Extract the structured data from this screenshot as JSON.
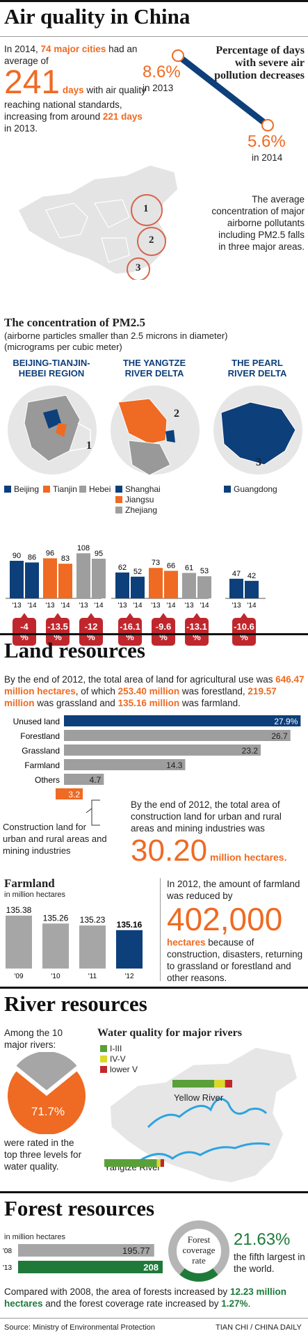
{
  "air": {
    "title": "Air quality in China",
    "intro": {
      "p1": "In 2014, ",
      "cities": "74 major cities",
      "p2": " had an average of",
      "days_big": "241",
      "days_word": " days",
      "p3": " with air quality reaching national standards, increasing from around ",
      "days_2013": "221 days",
      "p4": " in 2013."
    },
    "severe": {
      "title": "Percentage of days with severe air pollution decreases",
      "v2013": "8.6%",
      "y2013": "in 2013",
      "v2014": "5.6%",
      "y2014": "in 2014"
    },
    "map_note": "The average concentration of major airborne pollutants including PM2.5 falls in three major areas.",
    "map_labels": [
      "1",
      "2",
      "3"
    ],
    "pm": {
      "title": "The concentration of PM2.5",
      "sub1": "(airborne particles smaller than 2.5 microns in diameter)",
      "sub2": "(micrograms per cubic meter)"
    },
    "regions": [
      {
        "title1": "BEIJING-TIANJIN-",
        "title2": "HEBEI REGION",
        "num": "1"
      },
      {
        "title1": "THE YANGTZE",
        "title2": "RIVER DELTA",
        "num": "2"
      },
      {
        "title1": "THE PEARL",
        "title2": "RIVER DELTA",
        "num": "3"
      }
    ],
    "legend": {
      "beijing": "Beijing",
      "tianjin": "Tianjin",
      "hebei": "Hebei",
      "shanghai": "Shanghai",
      "jiangsu": "Jiangsu",
      "zhejiang": "Zhejiang",
      "guangdong": "Guangdong"
    },
    "changes": [
      "-4 %",
      "-13.5 %",
      "-12 %",
      "-16.1 %",
      "-9.6 %",
      "-13.1 %",
      "-10.6 %"
    ],
    "colors": {
      "navy": "#0d3f7a",
      "orange": "#ef6a22",
      "gray": "#9e9e9e",
      "red": "#c0272d",
      "green": "#1f7a3a"
    }
  },
  "land": {
    "title": "Land resources",
    "intro": {
      "p1": "By the end of 2012, the total area of land for agricultural use was ",
      "a": "646.47 million hectares",
      "p2": ", of which ",
      "b": "253.40 million",
      "p3": " was forestland, ",
      "c": "219.57 million",
      "p4": " was grassland and ",
      "d": "135.16 million",
      "p5": " was farmland."
    },
    "construction_label": "Construction land for urban and rural areas and mining industries",
    "construction_note": "By the end of 2012, the total area of construction land for urban and rural areas and mining industries was",
    "construction_big": "30.20",
    "construction_unit": " million hectares.",
    "farmland_title": "Farmland",
    "farmland_unit": "in million hectares",
    "reduce": {
      "p1": "In 2012, the amount of farmland was reduced by",
      "big": "402,000",
      "word": "hectares",
      "p2": " because of construction, disasters, returning to grassland or forestland and other reasons."
    }
  },
  "river": {
    "title": "River resources",
    "among": "Among the 10 major rivers:",
    "pct": "71.7%",
    "rated": "were rated in the top three levels for water quality.",
    "wq_title": "Water quality for major rivers",
    "legend": [
      "I-III",
      "IV-V",
      "lower V"
    ],
    "legend_colors": [
      "#5aa038",
      "#d9d92a",
      "#c0272d"
    ],
    "yellow": "Yellow River",
    "yangtze": "Yangtze River"
  },
  "forest": {
    "title": "Forest resources",
    "unit": "in million hectares",
    "years": [
      "'08",
      "'13"
    ],
    "gauge1": "Forest",
    "gauge2": "coverage",
    "gauge3": "rate",
    "rate": "21.63%",
    "rate_note": "the fifth largest in the world.",
    "compare": {
      "p1": "Compared with 2008, the area of forests increased by ",
      "a": "12.23 million hectares",
      "p2": " and the forest coverage rate increased by ",
      "b": "1.27%",
      "p3": "."
    }
  },
  "footer": {
    "source": "Source: Ministry of Environmental Protection",
    "credit": "TIAN CHI / CHINA DAILY"
  },
  "chart_data": [
    {
      "type": "bar",
      "title": "The concentration of PM2.5",
      "ylabel": "micrograms per cubic meter",
      "categories": [
        "'13",
        "'14"
      ],
      "series": [
        {
          "name": "Beijing",
          "values": [
            90,
            86
          ]
        },
        {
          "name": "Tianjin",
          "values": [
            96,
            83
          ]
        },
        {
          "name": "Hebei",
          "values": [
            108,
            95
          ]
        },
        {
          "name": "Shanghai",
          "values": [
            62,
            52
          ]
        },
        {
          "name": "Jiangsu",
          "values": [
            73,
            66
          ]
        },
        {
          "name": "Zhejiang",
          "values": [
            61,
            53
          ]
        },
        {
          "name": "Guangdong",
          "values": [
            47,
            42
          ]
        }
      ]
    },
    {
      "type": "bar",
      "orientation": "horizontal",
      "categories": [
        "Unused land",
        "Forestland",
        "Grassland",
        "Farmland",
        "Others",
        ""
      ],
      "values": [
        27.9,
        26.7,
        23.2,
        14.3,
        4.7,
        3.2
      ],
      "value_labels": [
        "27.9%",
        "26.7",
        "23.2",
        "14.3",
        "4.7",
        "3.2"
      ]
    },
    {
      "type": "bar",
      "title": "Farmland",
      "ylabel": "in million hectares",
      "categories": [
        "'09",
        "'10",
        "'11",
        "'12"
      ],
      "values": [
        135.38,
        135.26,
        135.23,
        135.16
      ]
    },
    {
      "type": "pie",
      "values": [
        71.7,
        28.3
      ],
      "labels": [
        "71.7%",
        ""
      ]
    },
    {
      "type": "bar",
      "orientation": "horizontal",
      "title": "Water quality for major rivers",
      "categories": [
        "Yellow River",
        "Yangtze River"
      ],
      "series": [
        {
          "name": "I-III",
          "values": [
            70,
            88
          ]
        },
        {
          "name": "IV-V",
          "values": [
            18,
            6
          ]
        },
        {
          "name": "lower V",
          "values": [
            12,
            6
          ]
        }
      ]
    },
    {
      "type": "bar",
      "orientation": "horizontal",
      "title": "Forest resources",
      "ylabel": "in million hectares",
      "categories": [
        "'08",
        "'13"
      ],
      "values": [
        195.77,
        208
      ]
    }
  ]
}
